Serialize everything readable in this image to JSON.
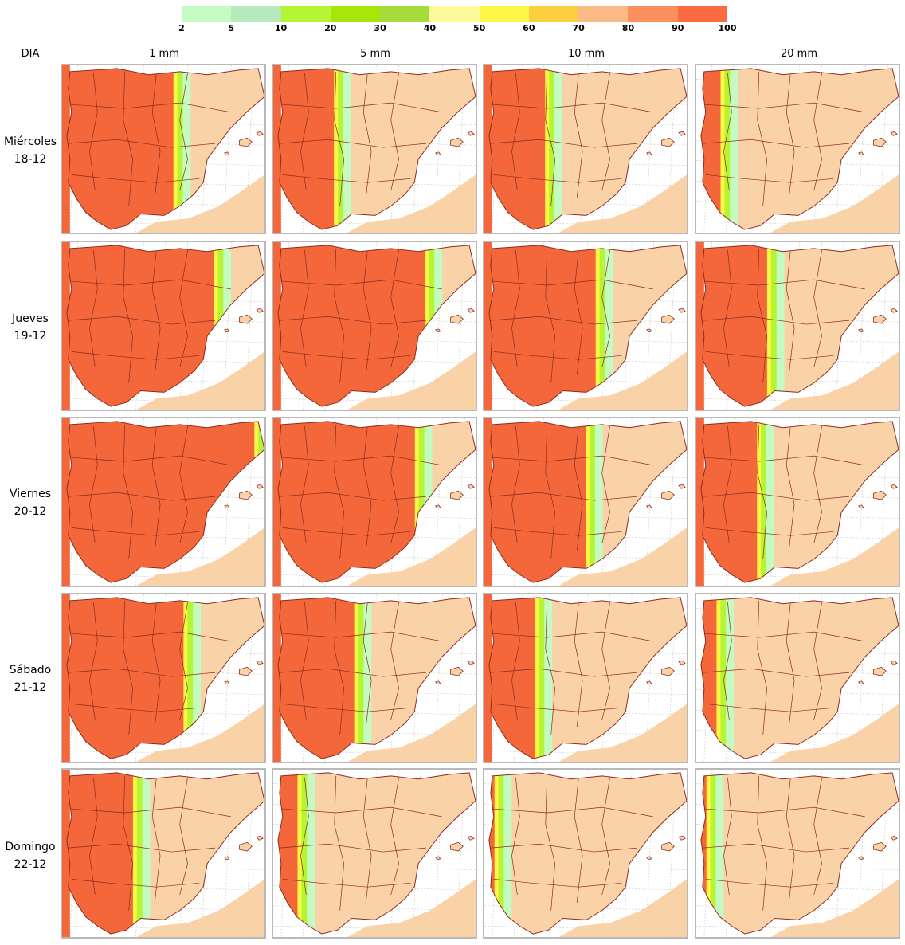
{
  "legend": {
    "colors": [
      "#c3fbc3",
      "#b8e9ba",
      "#b6f534",
      "#a8e60a",
      "#a4dc3c",
      "#fdfa9b",
      "#fcf645",
      "#fccf41",
      "#fcb885",
      "#fc8f5e",
      "#fb6a40"
    ],
    "ticks": [
      "2",
      "5",
      "10",
      "20",
      "30",
      "40",
      "50",
      "60",
      "70",
      "80",
      "90",
      "100"
    ]
  },
  "header": {
    "dia": "DIA",
    "columns": [
      "1 mm",
      "5 mm",
      "10 mm",
      "20 mm"
    ]
  },
  "rows": [
    {
      "day": "Miércoles",
      "date": "18-12"
    },
    {
      "day": "Jueves",
      "date": "19-12"
    },
    {
      "day": "Viernes",
      "date": "20-12"
    },
    {
      "day": "Sábado",
      "date": "21-12"
    },
    {
      "day": "Domingo",
      "date": "22-12"
    }
  ],
  "map_colors": {
    "land": "#fad2a8",
    "sea": "#ffffff",
    "border": "#8b2b1e",
    "grid": "#c8c8c8",
    "high": "#f4673a",
    "mid": "#fcf645",
    "low": "#b6f534",
    "faint": "#c3fbc3"
  },
  "panels": [
    [
      "west-strong",
      "west-coast",
      "west-coast",
      "northwest-small"
    ],
    [
      "most",
      "most",
      "west-half",
      "west-band"
    ],
    [
      "all",
      "most-green",
      "center-mix",
      "scattered"
    ],
    [
      "west-green",
      "patchy",
      "patchy-light",
      "sparse"
    ],
    [
      "north-patchy",
      "light",
      "minimal",
      "minimal"
    ]
  ],
  "panel_levels": {
    "west-strong": 0.55,
    "west-coast": 0.3,
    "northwest-small": 0.12,
    "most": 0.75,
    "west-half": 0.55,
    "west-band": 0.35,
    "all": 0.95,
    "most-green": 0.7,
    "center-mix": 0.5,
    "scattered": 0.3,
    "west-green": 0.6,
    "patchy": 0.4,
    "patchy-light": 0.25,
    "sparse": 0.1,
    "north-patchy": 0.35,
    "light": 0.12,
    "minimal": 0.05
  }
}
